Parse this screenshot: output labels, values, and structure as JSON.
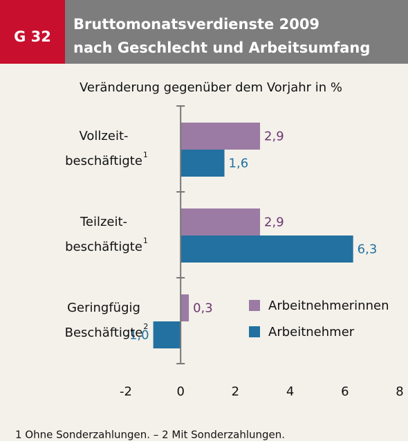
{
  "chart_data": {
    "type": "bar",
    "orientation": "horizontal",
    "figure_number": "G 32",
    "title": [
      "Bruttomonatsverdienste 2009",
      "nach Geschlecht und Arbeitsumfang"
    ],
    "subtitle": "Veränderung gegenüber dem Vorjahr in %",
    "categories": [
      [
        "Vollzeit-",
        "beschäftigte"
      ],
      [
        "Teilzeit-",
        "beschäftigte"
      ],
      [
        "Geringfügig",
        "Beschäftigte"
      ]
    ],
    "category_notes": [
      "1",
      "1",
      "2"
    ],
    "series": [
      {
        "name": "Arbeitnehmerinnen",
        "color": "#9b7ba3",
        "label_color": "#6e3571",
        "values": [
          2.9,
          2.9,
          0.3
        ],
        "value_labels": [
          "2,9",
          "2,9",
          "0,3"
        ]
      },
      {
        "name": "Arbeitnehmer",
        "color": "#2271a0",
        "label_color": "#2271a0",
        "values": [
          1.6,
          6.3,
          -1.0
        ],
        "value_labels": [
          "1,6",
          "6,3",
          "-1,0"
        ]
      }
    ],
    "xlim": [
      -2,
      8
    ],
    "xticks": [
      -2,
      0,
      2,
      4,
      6,
      8
    ],
    "footnote": "1 Ohne Sonderzahlungen. – 2 Mit Sonderzahlungen."
  }
}
